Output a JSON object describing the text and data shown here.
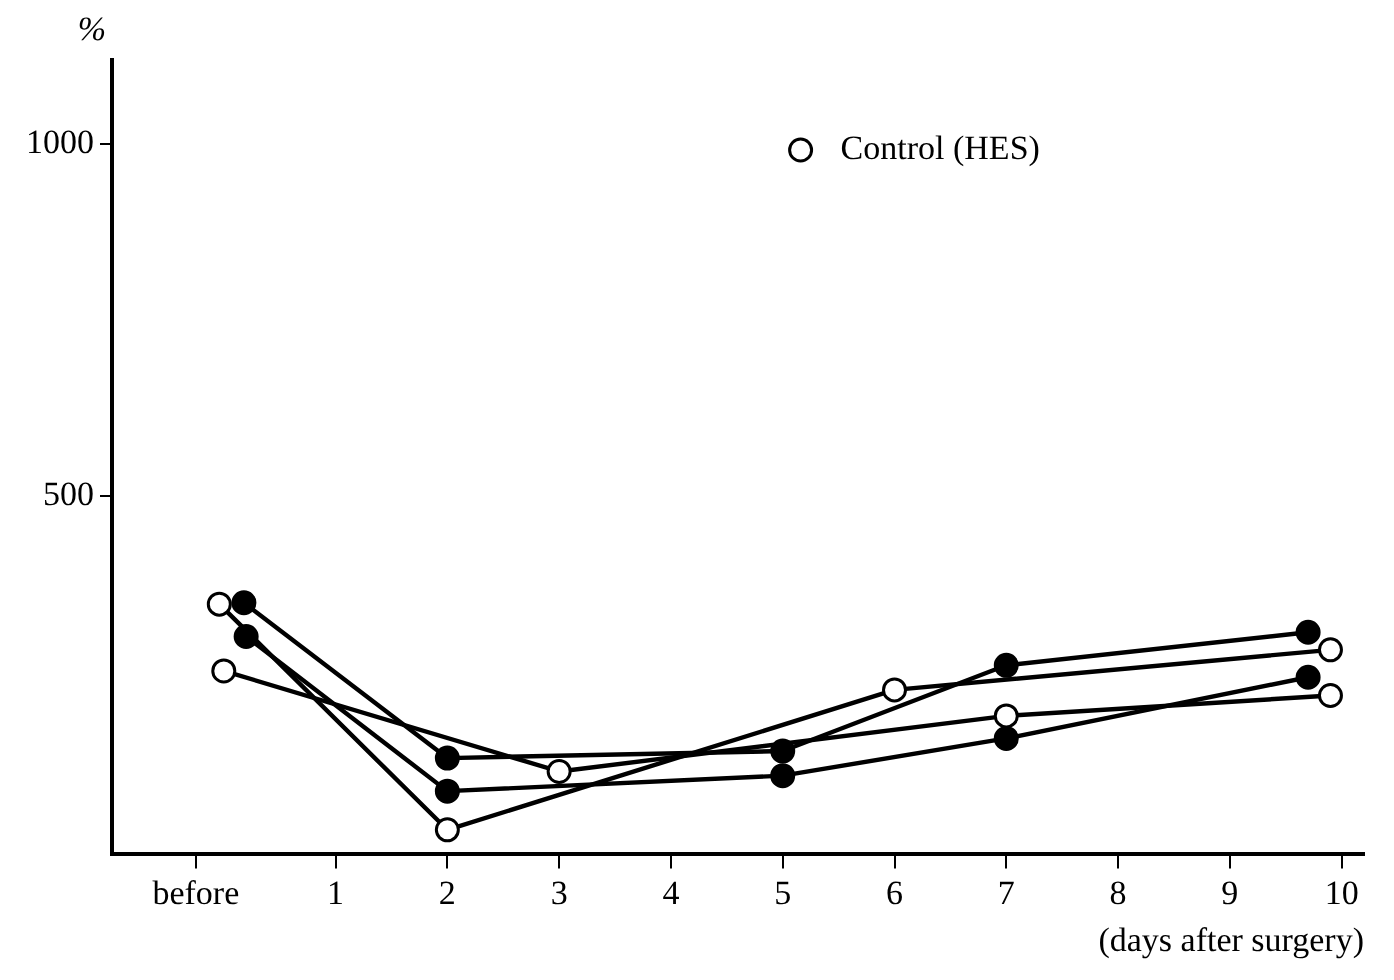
{
  "chart_data": {
    "type": "line",
    "ylabel": "%",
    "xlabel": "(days after surgery)",
    "xlim": [
      -1,
      10.2
    ],
    "ylim": [
      -10,
      1120
    ],
    "xticks": [
      {
        "value": -0.25,
        "label": "before"
      },
      1,
      2,
      3,
      4,
      5,
      6,
      7,
      8,
      9,
      10
    ],
    "yticks": [
      500,
      1000
    ],
    "marker": "circle",
    "legend": "top right",
    "series": [
      {
        "name": "Control (HES)",
        "color": "#ffffff",
        "x": [
          -0.04,
          2,
          6,
          9.9
        ],
        "values": [
          346,
          25,
          224,
          281
        ]
      },
      {
        "color": "#ffffff",
        "x": [
          0,
          3,
          7,
          9.9
        ],
        "values": [
          251,
          108,
          187,
          216
        ]
      },
      {
        "color": "#000000",
        "x": [
          0.18,
          2,
          5,
          7,
          9.7
        ],
        "values": [
          348,
          127,
          137,
          259,
          306
        ]
      },
      {
        "color": "#000000",
        "x": [
          0.2,
          2,
          5,
          7,
          9.7
        ],
        "values": [
          300,
          80,
          102,
          155,
          242
        ]
      }
    ]
  }
}
